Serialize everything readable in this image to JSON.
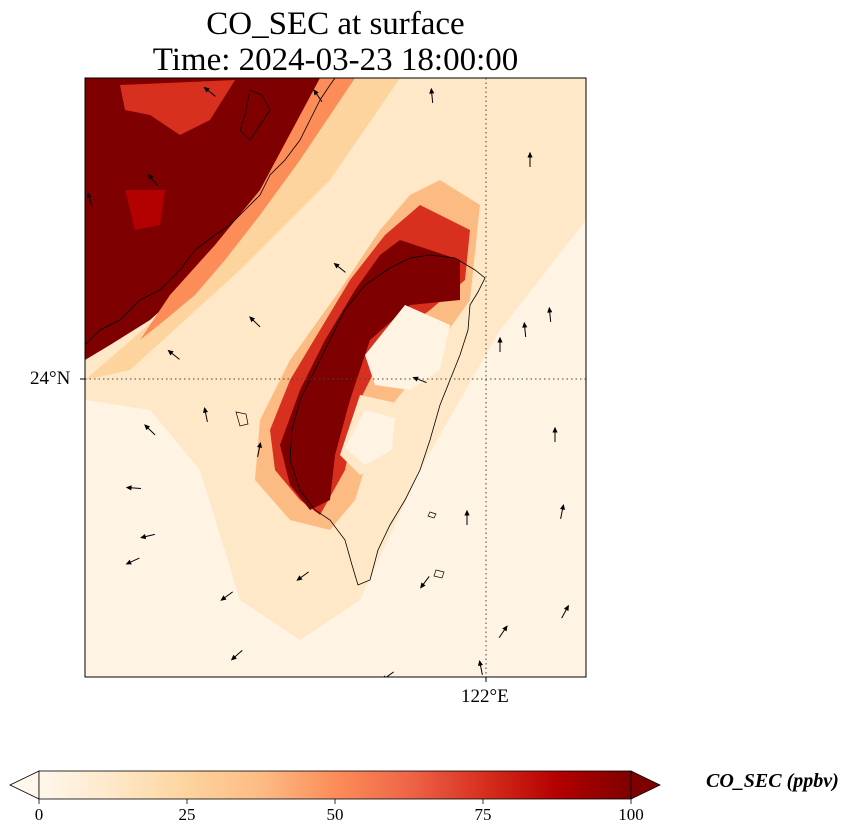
{
  "title": {
    "line1": "CO_SEC at surface",
    "line2": "Time: 2024-03-23 18:00:00"
  },
  "map": {
    "type": "filled raster map with wind vectors",
    "variable": "CO_SEC",
    "level": "surface",
    "gridlines": "dotted",
    "lat_label": "24°N",
    "lon_label": "122°E",
    "land_outline_color": "#000000",
    "wind_arrow_color": "#000000"
  },
  "colorbar": {
    "label": "CO_SEC (ppbv)",
    "ticks": [
      "0",
      "25",
      "50",
      "75",
      "100"
    ],
    "tick_values": [
      0,
      25,
      50,
      75,
      100
    ],
    "colormap": "OrRd",
    "extend": "both",
    "colors": [
      "#fff7ec",
      "#fee8c8",
      "#fdd49e",
      "#fdbb84",
      "#fc8d59",
      "#ef6548",
      "#d7301f",
      "#b30000",
      "#7f0000"
    ]
  }
}
